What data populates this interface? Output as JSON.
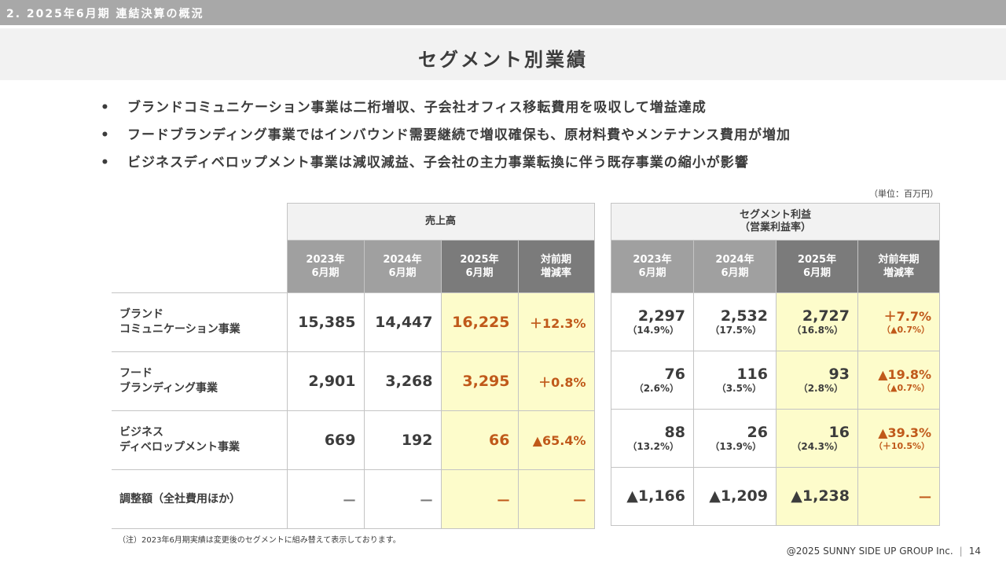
{
  "section_header": "2. 2025年6月期 連結決算の概況",
  "page_title": "セグメント別業績",
  "bullets": [
    "ブランドコミュニケーション事業は二桁増収、子会社オフィス移転費用を吸収して増益達成",
    "フードブランディング事業ではインバウンド需要継続で増収確保も、原材料費やメンテナンス費用が増加",
    "ビジネスディベロップメント事業は減収減益、子会社の主力事業転換に伴う既存事業の縮小が影響"
  ],
  "bullet_mark": "•",
  "unit_note": "（単位：百万円）",
  "sales_table": {
    "group_header": "売上高",
    "columns": [
      {
        "line1": "2023年",
        "line2": "6月期"
      },
      {
        "line1": "2024年",
        "line2": "6月期"
      },
      {
        "line1": "2025年",
        "line2": "6月期"
      },
      {
        "line1": "対前期",
        "line2": "増減率"
      }
    ]
  },
  "profit_table": {
    "group_header_line1": "セグメント利益",
    "group_header_line2": "（営業利益率）",
    "columns": [
      {
        "line1": "2023年",
        "line2": "6月期"
      },
      {
        "line1": "2024年",
        "line2": "6月期"
      },
      {
        "line1": "2025年",
        "line2": "6月期"
      },
      {
        "line1": "対前年期",
        "line2": "増減率"
      }
    ]
  },
  "rows": [
    {
      "label_line1": "ブランド",
      "label_line2": "コミュニケーション事業",
      "sales": [
        "15,385",
        "14,447",
        "16,225",
        "＋12.3%"
      ],
      "profit": [
        {
          "value": "2,297",
          "rate": "（14.9%）"
        },
        {
          "value": "2,532",
          "rate": "（17.5%）"
        },
        {
          "value": "2,727",
          "rate": "（16.8%）"
        },
        {
          "value": "＋7.7%",
          "rate": "（▲0.7%）"
        }
      ]
    },
    {
      "label_line1": "フード",
      "label_line2": "ブランディング事業",
      "sales": [
        "2,901",
        "3,268",
        "3,295",
        "＋0.8%"
      ],
      "profit": [
        {
          "value": "76",
          "rate": "（2.6%）"
        },
        {
          "value": "116",
          "rate": "（3.5%）"
        },
        {
          "value": "93",
          "rate": "（2.8%）"
        },
        {
          "value": "▲19.8%",
          "rate": "（▲0.7%）"
        }
      ]
    },
    {
      "label_line1": "ビジネス",
      "label_line2": "ディベロップメント事業",
      "sales": [
        "669",
        "192",
        "66",
        "▲65.4%"
      ],
      "profit": [
        {
          "value": "88",
          "rate": "（13.2%）"
        },
        {
          "value": "26",
          "rate": "（13.9%）"
        },
        {
          "value": "16",
          "rate": "（24.3%）"
        },
        {
          "value": "▲39.3%",
          "rate": "（＋10.5%）"
        }
      ]
    },
    {
      "label_line1": "調整額（全社費用ほか）",
      "sales": [
        "—",
        "—",
        "—",
        "—"
      ],
      "profit": [
        {
          "value": "▲1,166"
        },
        {
          "value": "▲1,209"
        },
        {
          "value": "▲1,238"
        },
        {
          "value": "—"
        }
      ]
    }
  ],
  "footnote": "（注）2023年6月期実績は変更後のセグメントに組み替えて表示しております。",
  "footer": {
    "copyright": "@2025 SUNNY SIDE UP GROUP Inc.",
    "separator": "|",
    "page_number": "14"
  }
}
